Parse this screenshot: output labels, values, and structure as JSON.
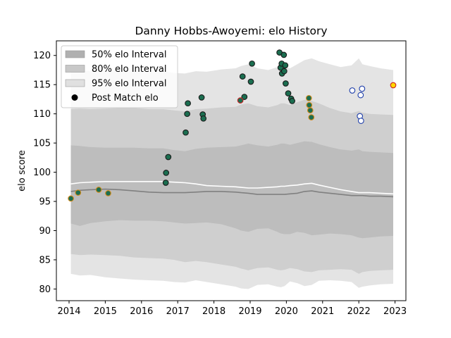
{
  "chart_data": {
    "type": "scatter",
    "title": "Danny Hobbs-Awoyemi: elo History",
    "xlabel": "",
    "ylabel": "elo score",
    "xlim": [
      2013.65,
      2023.3
    ],
    "ylim": [
      78,
      122.5
    ],
    "xticks": [
      2014,
      2015,
      2016,
      2017,
      2018,
      2019,
      2020,
      2021,
      2022,
      2023
    ],
    "yticks": [
      80,
      85,
      90,
      95,
      100,
      105,
      110,
      115,
      120
    ],
    "grid": false,
    "legend_position": "top-left",
    "legend": [
      {
        "label": "50% elo Interval",
        "kind": "band-50"
      },
      {
        "label": "80% elo Interval",
        "kind": "band-80"
      },
      {
        "label": "95% elo Interval",
        "kind": "band-95"
      },
      {
        "label": "Post Match elo",
        "kind": "marker"
      }
    ],
    "colors": {
      "band_95": "#e4e4e4",
      "band_80": "#cfcfcf",
      "band_50": "#bdbdbd",
      "mean_line": "#ffffff",
      "median_line": "#808080",
      "green_face": "#1b6e50",
      "blue_edge": "#1f3faa",
      "orange_edge": "#d48a1a",
      "red_edge": "#cc2020"
    },
    "band_x": [
      2014.05,
      2014.3,
      2014.6,
      2015.0,
      2015.4,
      2015.8,
      2016.2,
      2016.6,
      2016.9,
      2017.2,
      2017.5,
      2017.8,
      2018.2,
      2018.6,
      2018.75,
      2018.95,
      2019.2,
      2019.5,
      2019.75,
      2019.85,
      2019.95,
      2020.1,
      2020.3,
      2020.5,
      2020.7,
      2020.9,
      2021.2,
      2021.5,
      2021.8,
      2022.0,
      2022.1,
      2022.3,
      2022.6,
      2022.95
    ],
    "band_95_upper": [
      117.5,
      117.4,
      117.3,
      117.4,
      117.5,
      117.4,
      117.2,
      117.3,
      117.0,
      116.9,
      117.3,
      117.2,
      117.6,
      117.8,
      118.2,
      118.5,
      117.8,
      117.5,
      118.0,
      118.3,
      118.1,
      117.8,
      118.5,
      119.2,
      119.5,
      119.0,
      118.5,
      118.0,
      118.3,
      119.5,
      118.5,
      118.2,
      117.8,
      117.5
    ],
    "band_80_upper": [
      110.8,
      110.9,
      110.8,
      110.9,
      111.0,
      111.0,
      110.8,
      110.8,
      110.6,
      110.4,
      110.8,
      110.9,
      111.1,
      111.2,
      111.6,
      111.8,
      111.3,
      111.1,
      111.5,
      111.8,
      111.8,
      111.5,
      112.0,
      112.4,
      112.2,
      111.8,
      111.0,
      110.4,
      110.1,
      110.5,
      110.2,
      110.0,
      109.9,
      109.8
    ],
    "band_50_upper": [
      104.6,
      104.5,
      104.3,
      104.2,
      104.2,
      104.2,
      104.1,
      104.1,
      103.8,
      103.6,
      104.0,
      104.2,
      104.3,
      104.4,
      104.6,
      104.9,
      104.6,
      104.4,
      104.7,
      104.9,
      104.9,
      104.7,
      105.0,
      105.3,
      105.2,
      104.8,
      104.3,
      103.9,
      103.7,
      103.9,
      103.6,
      103.5,
      103.4,
      103.3
    ],
    "band_50_lower": [
      91.2,
      90.8,
      91.3,
      91.6,
      91.8,
      91.7,
      91.7,
      91.6,
      91.4,
      91.2,
      91.3,
      91.4,
      91.1,
      90.4,
      90.0,
      89.8,
      90.3,
      90.4,
      89.8,
      89.5,
      89.4,
      89.4,
      89.8,
      89.6,
      89.2,
      89.3,
      89.5,
      89.4,
      89.2,
      88.8,
      88.7,
      88.8,
      89.0,
      89.1
    ],
    "band_80_lower": [
      86.0,
      85.8,
      85.9,
      85.8,
      85.7,
      85.4,
      85.3,
      85.2,
      85.0,
      84.6,
      84.8,
      84.6,
      84.2,
      83.8,
      83.5,
      83.2,
      83.6,
      83.7,
      83.3,
      83.2,
      83.3,
      83.6,
      83.4,
      83.0,
      82.9,
      83.2,
      83.3,
      83.4,
      83.3,
      82.6,
      82.9,
      83.1,
      83.2,
      83.3
    ],
    "band_95_lower": [
      82.6,
      82.3,
      82.4,
      82.0,
      81.8,
      81.6,
      81.5,
      81.4,
      81.2,
      81.1,
      81.5,
      81.2,
      80.8,
      80.4,
      80.1,
      80.0,
      80.7,
      80.8,
      80.4,
      80.3,
      80.5,
      81.3,
      81.0,
      80.5,
      80.7,
      81.4,
      81.5,
      81.4,
      81.2,
      80.2,
      80.4,
      80.6,
      80.8,
      80.9
    ],
    "mean_line": [
      98.0,
      98.2,
      98.3,
      98.4,
      98.4,
      98.4,
      98.4,
      98.4,
      98.3,
      98.2,
      98.0,
      97.7,
      97.6,
      97.5,
      97.4,
      97.3,
      97.3,
      97.4,
      97.5,
      97.6,
      97.6,
      97.7,
      97.8,
      98.0,
      98.1,
      97.8,
      97.4,
      97.0,
      96.7,
      96.5,
      96.5,
      96.5,
      96.4,
      96.3
    ],
    "median_line": [
      96.7,
      96.9,
      97.0,
      97.1,
      97.0,
      96.8,
      96.6,
      96.5,
      96.5,
      96.5,
      96.6,
      96.7,
      96.7,
      96.6,
      96.5,
      96.4,
      96.2,
      96.2,
      96.2,
      96.2,
      96.2,
      96.3,
      96.4,
      96.7,
      96.8,
      96.6,
      96.4,
      96.2,
      96.0,
      96.0,
      96.0,
      95.9,
      95.9,
      95.8
    ],
    "series": [
      {
        "face": "#1b6e50",
        "edge": "#d48a1a",
        "points": [
          [
            2014.05,
            95.5
          ],
          [
            2014.25,
            96.5
          ],
          [
            2014.82,
            97.0
          ],
          [
            2015.08,
            96.4
          ]
        ]
      },
      {
        "face": "#1b6e50",
        "edge": "#1a1a1a",
        "points": [
          [
            2016.67,
            98.2
          ],
          [
            2016.68,
            99.9
          ],
          [
            2016.74,
            102.6
          ],
          [
            2017.22,
            106.8
          ],
          [
            2017.26,
            110.0
          ],
          [
            2017.28,
            111.8
          ],
          [
            2017.66,
            112.8
          ],
          [
            2017.69,
            109.9
          ],
          [
            2017.71,
            109.2
          ],
          [
            2018.79,
            116.4
          ],
          [
            2018.84,
            112.9
          ],
          [
            2019.02,
            115.5
          ],
          [
            2019.05,
            118.6
          ],
          [
            2019.81,
            120.5
          ],
          [
            2019.84,
            117.9
          ],
          [
            2019.87,
            118.6
          ],
          [
            2019.88,
            116.9
          ],
          [
            2019.93,
            120.1
          ],
          [
            2019.94,
            117.3
          ],
          [
            2019.97,
            118.3
          ],
          [
            2019.98,
            115.2
          ],
          [
            2020.05,
            113.5
          ],
          [
            2020.13,
            112.6
          ],
          [
            2020.16,
            112.2
          ]
        ]
      },
      {
        "face": "#1b6e50",
        "edge": "#cc2020",
        "points": [
          [
            2018.73,
            112.3
          ]
        ]
      },
      {
        "face": "#1b6e50",
        "edge": "#d48a1a",
        "points": [
          [
            2020.62,
            112.7
          ],
          [
            2020.63,
            111.5
          ],
          [
            2020.66,
            110.6
          ],
          [
            2020.69,
            109.4
          ]
        ]
      },
      {
        "face": "#ffffff",
        "edge": "#1f3faa",
        "points": [
          [
            2021.82,
            114.0
          ],
          [
            2022.03,
            109.6
          ],
          [
            2022.05,
            113.2
          ],
          [
            2022.06,
            108.8
          ],
          [
            2022.09,
            114.3
          ]
        ]
      },
      {
        "face": "#ffd700",
        "edge": "#cc2020",
        "points": [
          [
            2022.95,
            114.9
          ]
        ]
      }
    ]
  }
}
